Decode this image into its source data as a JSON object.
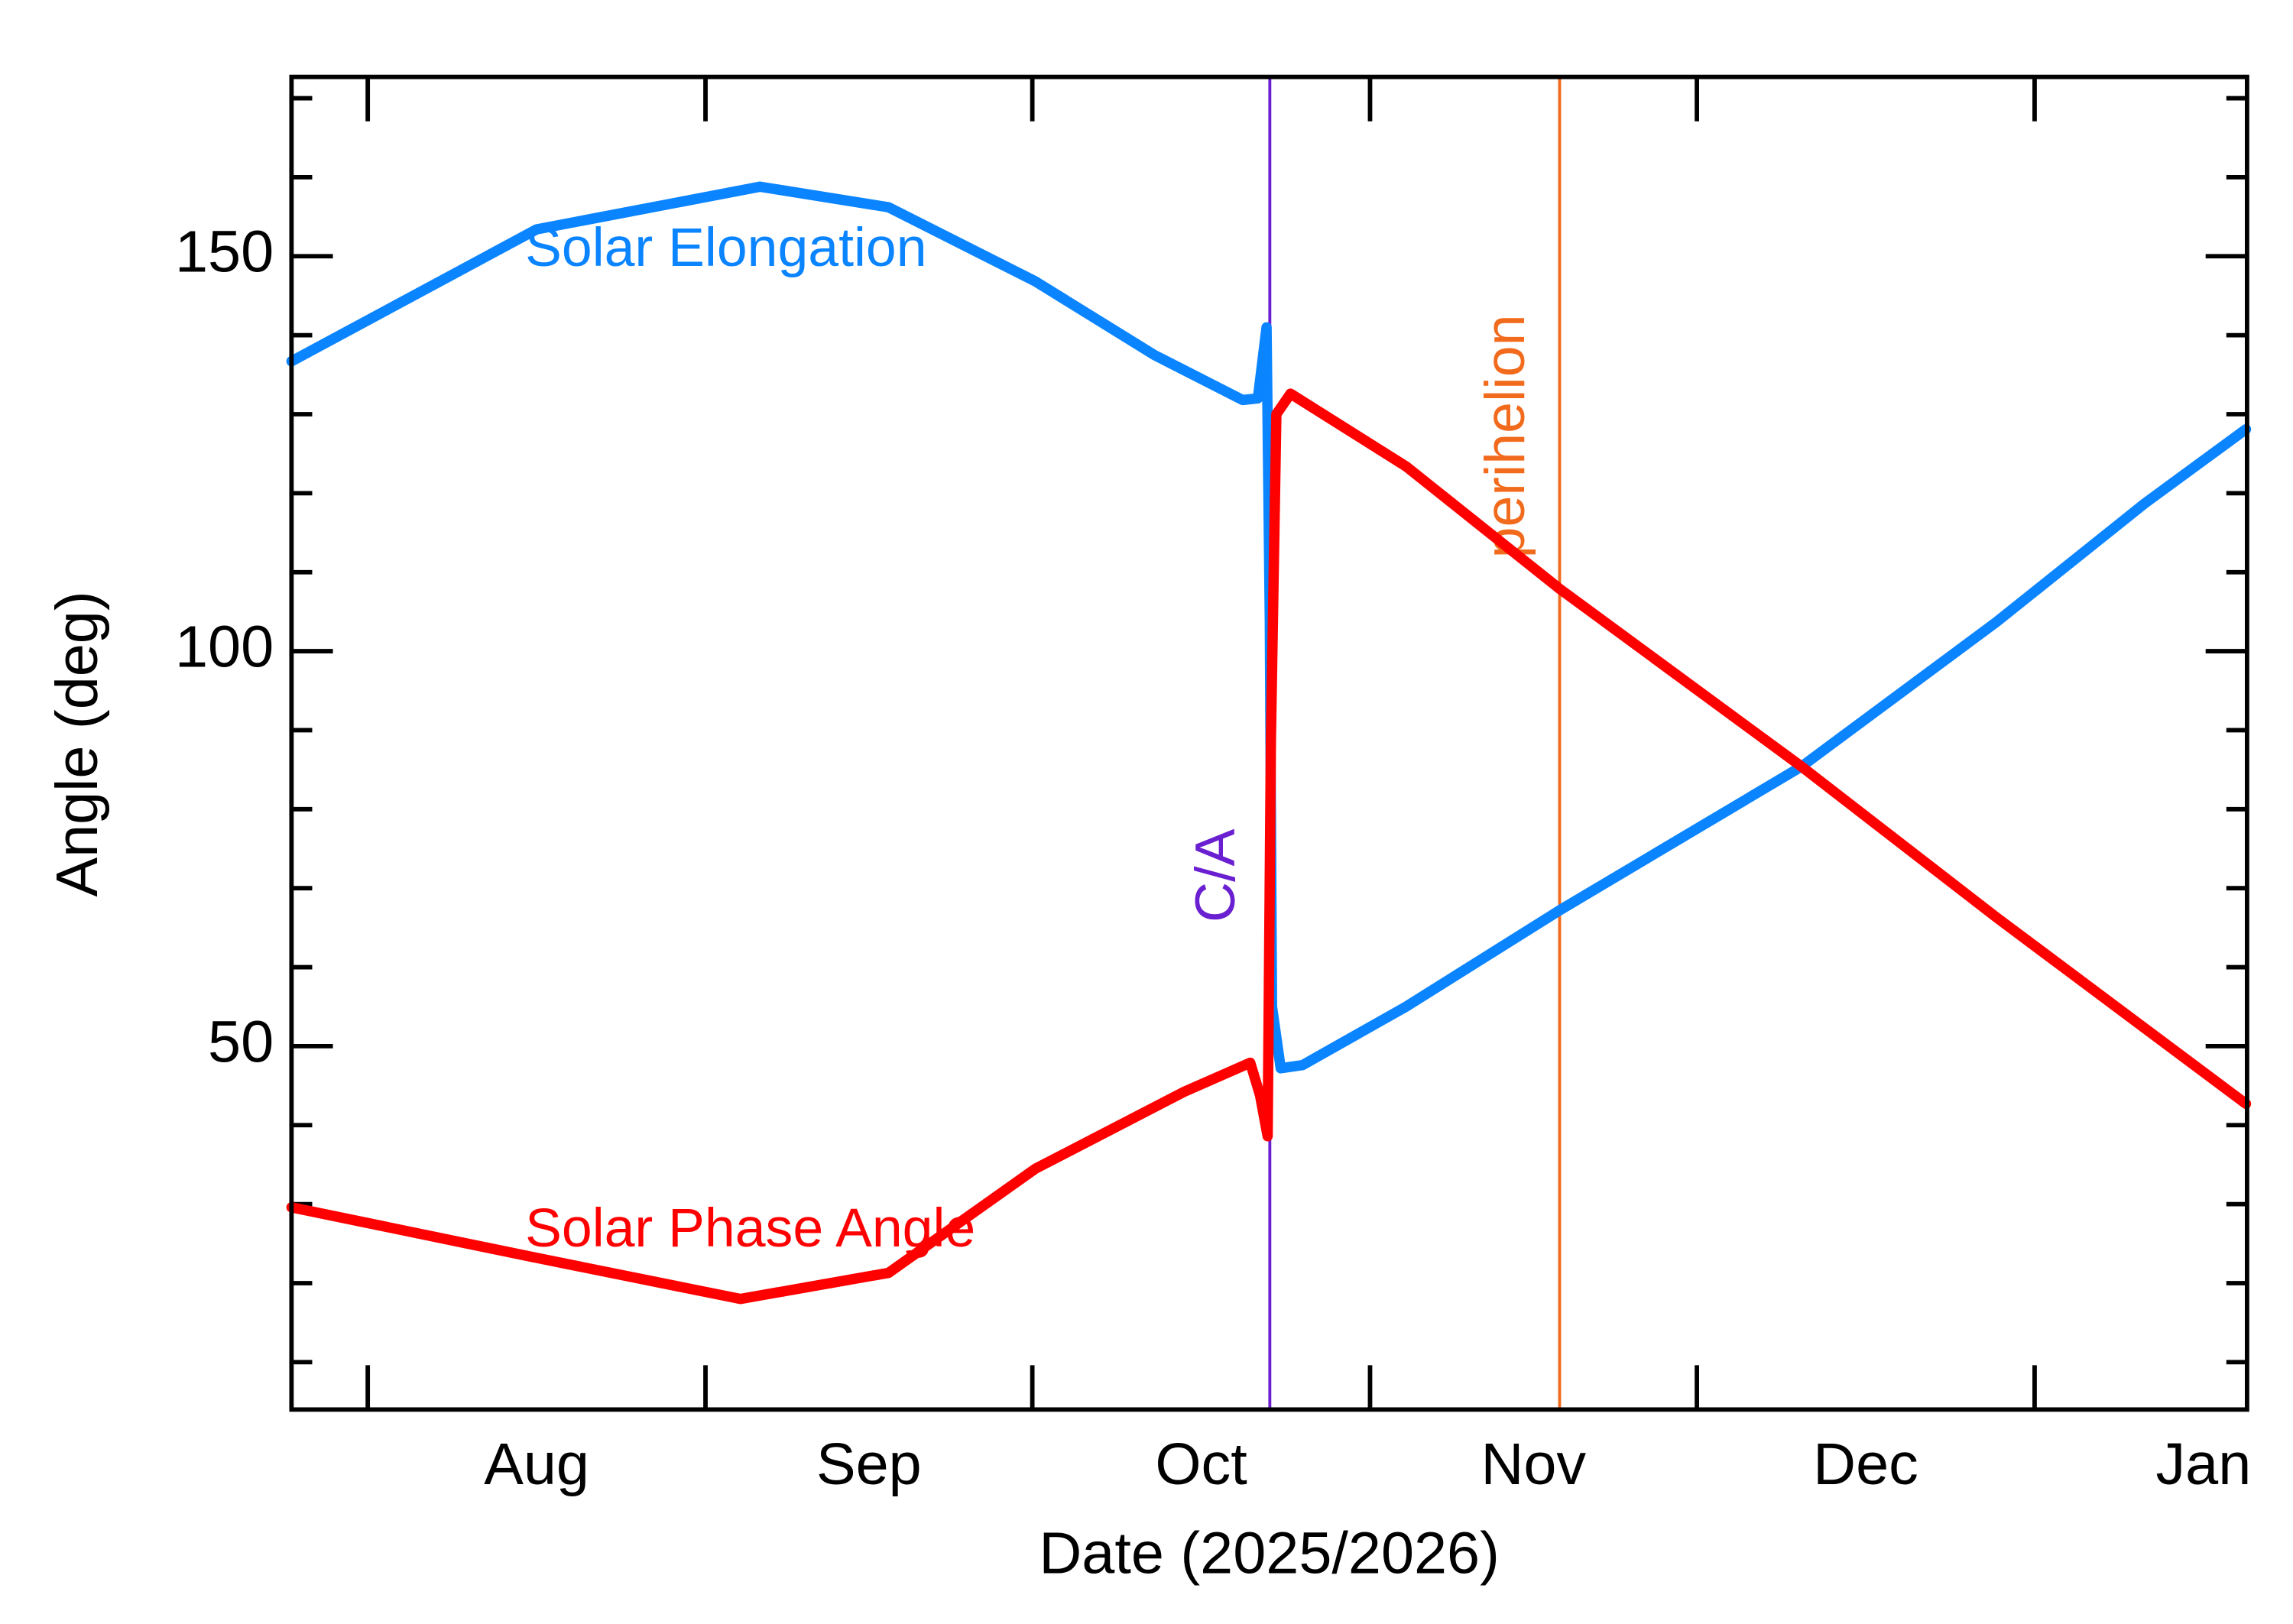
{
  "chart_data": {
    "type": "line",
    "x_label": "Date (2025/2026)",
    "y_label": "Angle (deg)",
    "xlim": [
      -7,
      172.5
    ],
    "ylim": [
      4,
      172.7
    ],
    "xticks": [
      {
        "value": 15.5,
        "label": "Aug"
      },
      {
        "value": 46,
        "label": "Sep"
      },
      {
        "value": 76.5,
        "label": "Oct"
      },
      {
        "value": 107,
        "label": "Nov"
      },
      {
        "value": 137.5,
        "label": "Dec"
      },
      {
        "value": 168.5,
        "label": "Jan"
      }
    ],
    "xminorticks": [
      0,
      31,
      61,
      92,
      122,
      153
    ],
    "yticks": [
      50,
      100,
      150
    ],
    "yminorticks": [
      10,
      20,
      30,
      40,
      60,
      70,
      80,
      90,
      110,
      120,
      130,
      140,
      160,
      170
    ],
    "x": [
      -7,
      15.5,
      34.2,
      36,
      47.8,
      61.3,
      72.2,
      74.9,
      80.3,
      81,
      81.7,
      81.9,
      82.5,
      82.6,
      82.8,
      82.9,
      83,
      83.4,
      83.8,
      84.7,
      85.8,
      95.3,
      109.4,
      131.6,
      149.5,
      163.1,
      172.4
    ],
    "series": [
      {
        "name": "Solar Elongation",
        "color": "#0a84ff",
        "values": [
          136.7,
          153.4,
          null,
          158.8,
          156.2,
          146.8,
          137.5,
          null,
          131.8,
          null,
          132,
          null,
          141,
          null,
          103.7,
          null,
          55,
          null,
          47.2,
          null,
          47.6,
          55,
          67.2,
          85.4,
          103.7,
          118.7,
          128.1
        ]
      },
      {
        "name": "Solar Phase Angle",
        "color": "#ff0000",
        "values": [
          29.6,
          23.2,
          18,
          null,
          21.3,
          34.5,
          null,
          44.2,
          null,
          47.9,
          null,
          43.8,
          null,
          38.6,
          null,
          88.8,
          null,
          130,
          null,
          132.6,
          null,
          123.4,
          107.9,
          85.4,
          66.3,
          null,
          42.7
        ]
      }
    ],
    "annotations": [
      {
        "text": "C/A",
        "x": 82.8,
        "color": "#6a1fd0"
      },
      {
        "text": "perihelion",
        "x": 109.4,
        "color": "#f26b1d"
      }
    ]
  }
}
